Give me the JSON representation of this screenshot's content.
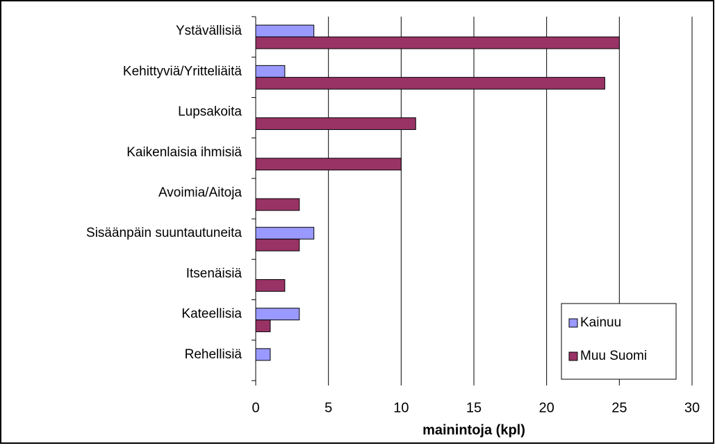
{
  "chart_data": {
    "type": "bar",
    "orientation": "horizontal",
    "categories": [
      "Ystävällisiä",
      "Kehittyviä/Yritteliäitä",
      "Lupsakoita",
      "Kaikenlaisia ihmisiä",
      "Avoimia/Aitoja",
      "Sisäänpäin suuntautuneita",
      "Itsenäisiä",
      "Kateellisia",
      "Rehellisiä"
    ],
    "series": [
      {
        "name": "Kainuu",
        "color": "#9999ff",
        "values": [
          4,
          2,
          0,
          0,
          0,
          4,
          0,
          3,
          1
        ]
      },
      {
        "name": "Muu Suomi",
        "color": "#993366",
        "values": [
          25,
          24,
          11,
          10,
          3,
          3,
          2,
          1,
          0
        ]
      }
    ],
    "xlabel": "mainintoja (kpl)",
    "xlim": [
      0,
      30
    ],
    "xticks": [
      0,
      5,
      10,
      15,
      20,
      25,
      30
    ],
    "grid": true,
    "legend": "lower right"
  }
}
